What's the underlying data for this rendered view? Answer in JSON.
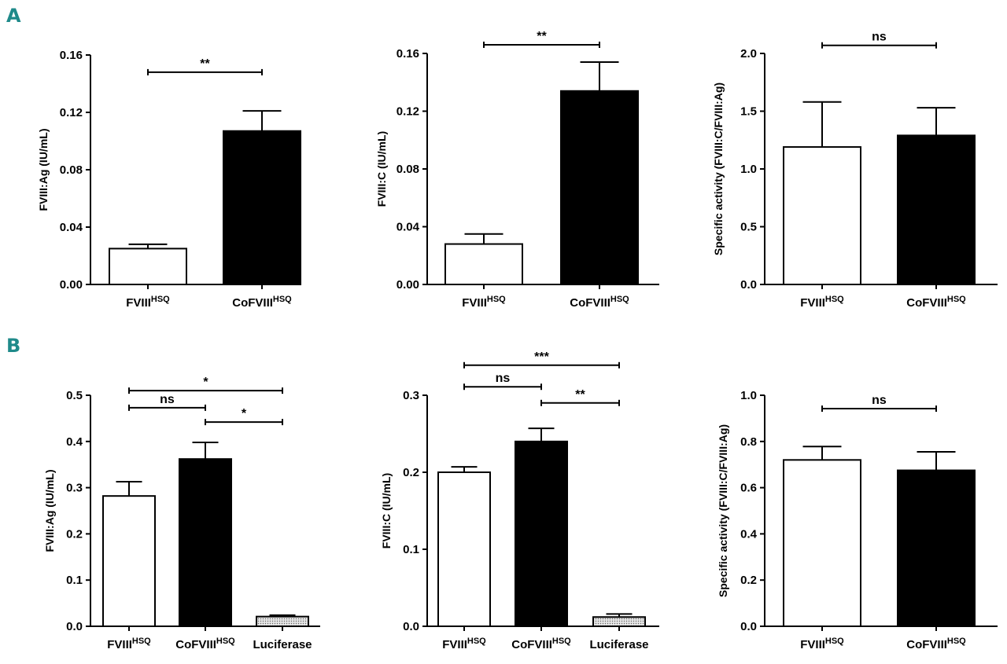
{
  "panels": {
    "a": "A",
    "b": "B"
  },
  "colors": {
    "teal": "#1f8a8a",
    "white_bar": "#ffffff",
    "black_bar": "#000000",
    "gray_bar": "#cfcfcf"
  },
  "chart_data": [
    {
      "type": "bar",
      "panel": "A",
      "ylabel": "FVIII:Ag (IU/mL)",
      "ylim": [
        0,
        0.16
      ],
      "yticks": [
        "0.00",
        "0.04",
        "0.08",
        "0.12",
        "0.16"
      ],
      "categories": [
        {
          "name": "FVIII",
          "sup": "HSQ",
          "value": 0.025,
          "err": 0.003,
          "fill": "white"
        },
        {
          "name": "CoFVIII",
          "sup": "HSQ",
          "value": 0.107,
          "err": 0.014,
          "fill": "black"
        }
      ],
      "brackets": [
        {
          "from": 0,
          "to": 1,
          "label": "**",
          "y": 0.148
        }
      ]
    },
    {
      "type": "bar",
      "panel": "A",
      "ylabel": "FVIII:C (IU/mL)",
      "ylim": [
        0,
        0.16
      ],
      "yticks": [
        "0.00",
        "0.04",
        "0.08",
        "0.12",
        "0.16"
      ],
      "categories": [
        {
          "name": "FVIII",
          "sup": "HSQ",
          "value": 0.028,
          "err": 0.007,
          "fill": "white"
        },
        {
          "name": "CoFVIII",
          "sup": "HSQ",
          "value": 0.134,
          "err": 0.02,
          "fill": "black"
        }
      ],
      "brackets": [
        {
          "from": 0,
          "to": 1,
          "label": "**",
          "y": 0.166
        }
      ]
    },
    {
      "type": "bar",
      "panel": "A",
      "ylabel": "Specific activity (FVIII:C/FVIII:Ag)",
      "ylim": [
        0,
        2.0
      ],
      "yticks": [
        "0.0",
        "0.5",
        "1.0",
        "1.5",
        "2.0"
      ],
      "categories": [
        {
          "name": "FVIII",
          "sup": "HSQ",
          "value": 1.19,
          "err": 0.39,
          "fill": "white"
        },
        {
          "name": "CoFVIII",
          "sup": "HSQ",
          "value": 1.29,
          "err": 0.24,
          "fill": "black"
        }
      ],
      "brackets": [
        {
          "from": 0,
          "to": 1,
          "label": "ns",
          "y": 2.07
        }
      ]
    },
    {
      "type": "bar",
      "panel": "B",
      "ylabel": "FVIII:Ag (IU/mL)",
      "ylim": [
        0,
        0.5
      ],
      "yticks": [
        "0.0",
        "0.1",
        "0.2",
        "0.3",
        "0.4",
        "0.5"
      ],
      "categories": [
        {
          "name": "FVIII",
          "sup": "HSQ",
          "value": 0.282,
          "err": 0.031,
          "fill": "white"
        },
        {
          "name": "CoFVIII",
          "sup": "HSQ",
          "value": 0.362,
          "err": 0.036,
          "fill": "black"
        },
        {
          "name": "Luciferase",
          "sup": "",
          "value": 0.021,
          "err": 0.003,
          "fill": "gray"
        }
      ],
      "brackets": [
        {
          "from": 0,
          "to": 2,
          "label": "*",
          "y": 0.51
        },
        {
          "from": 0,
          "to": 1,
          "label": "ns",
          "y": 0.473
        },
        {
          "from": 1,
          "to": 2,
          "label": "*",
          "y": 0.442
        }
      ]
    },
    {
      "type": "bar",
      "panel": "B",
      "ylabel": "FVIII:C (IU/mL)",
      "ylim": [
        0,
        0.3
      ],
      "yticks": [
        "0.0",
        "0.1",
        "0.2",
        "0.3"
      ],
      "categories": [
        {
          "name": "FVIII",
          "sup": "HSQ",
          "value": 0.2,
          "err": 0.007,
          "fill": "white"
        },
        {
          "name": "CoFVIII",
          "sup": "HSQ",
          "value": 0.24,
          "err": 0.017,
          "fill": "black"
        },
        {
          "name": "Luciferase",
          "sup": "",
          "value": 0.012,
          "err": 0.004,
          "fill": "gray"
        }
      ],
      "brackets": [
        {
          "from": 0,
          "to": 2,
          "label": "***",
          "y": 0.339
        },
        {
          "from": 0,
          "to": 1,
          "label": "ns",
          "y": 0.311
        },
        {
          "from": 1,
          "to": 2,
          "label": "**",
          "y": 0.29
        }
      ]
    },
    {
      "type": "bar",
      "panel": "B",
      "ylabel": "Specific activity (FVIII:C/FVIII:Ag)",
      "ylim": [
        0,
        1.0
      ],
      "yticks": [
        "0.0",
        "0.2",
        "0.4",
        "0.6",
        "0.8",
        "1.0"
      ],
      "categories": [
        {
          "name": "FVIII",
          "sup": "HSQ",
          "value": 0.72,
          "err": 0.058,
          "fill": "white"
        },
        {
          "name": "CoFVIII",
          "sup": "HSQ",
          "value": 0.675,
          "err": 0.08,
          "fill": "black"
        }
      ],
      "brackets": [
        {
          "from": 0,
          "to": 1,
          "label": "ns",
          "y": 0.942
        }
      ]
    }
  ]
}
